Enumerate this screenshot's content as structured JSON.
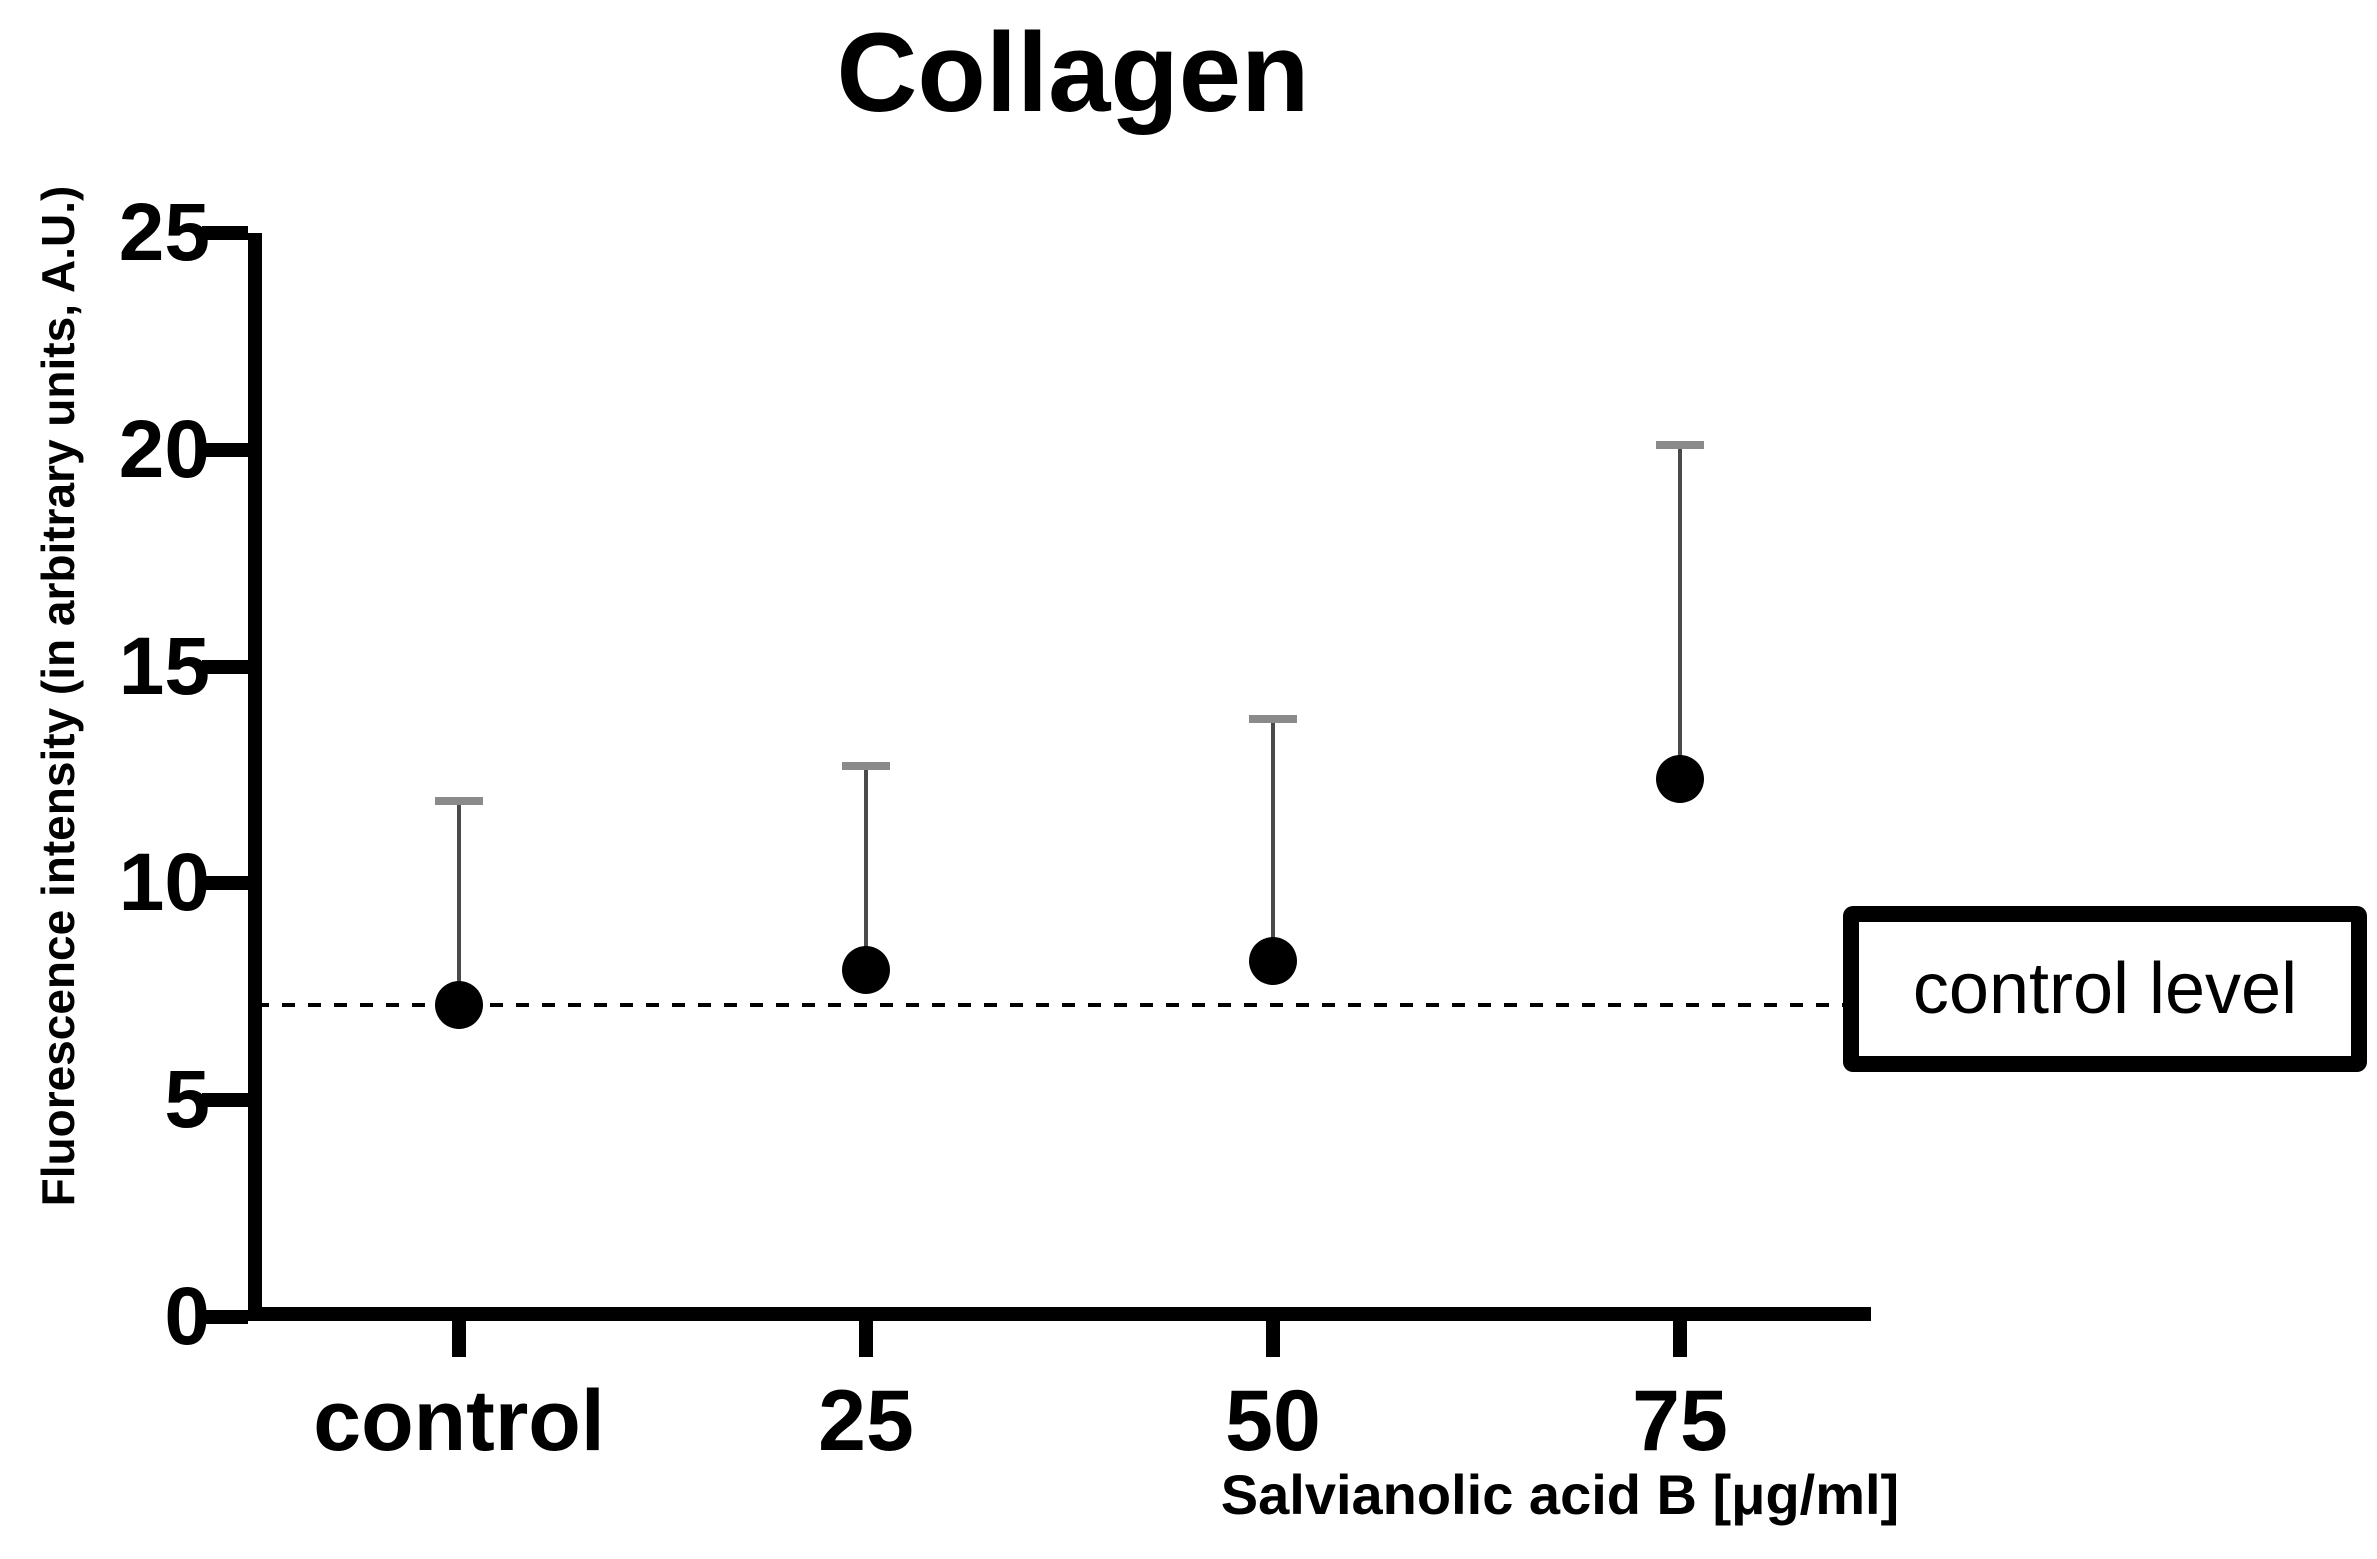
{
  "chart_data": {
    "type": "scatter",
    "title": "Collagen",
    "xlabel": "Salvianolic acid B [μg/ml]",
    "ylabel": "Fluorescence intensity (in arbitrary units, A.U.)",
    "categories": [
      "control",
      "25",
      "50",
      "75"
    ],
    "series": [
      {
        "values": [
          7.2,
          8.0,
          8.2,
          12.4
        ],
        "upper_errors": [
          4.7,
          4.7,
          5.6,
          7.7
        ],
        "error_bar_tops": [
          11.9,
          12.7,
          13.8,
          20.1
        ]
      }
    ],
    "error_bars": "upper-only",
    "control_level": 7.2,
    "annotations": [
      {
        "text": "control level",
        "style": "boxed-label",
        "y": 7.2,
        "position": "right-of-plot"
      }
    ],
    "ylim": [
      0,
      25
    ],
    "yticks": [
      0,
      5,
      10,
      15,
      20,
      25
    ],
    "grid": false,
    "legend": "none",
    "marker": {
      "shape": "circle",
      "color": "#000000"
    },
    "colors": {
      "axis": "#000000",
      "marker": "#000000",
      "error_bar_line": "#4a4a4a",
      "error_bar_cap": "#8a8a8a",
      "control_line": "#000000",
      "background": "#ffffff"
    }
  }
}
